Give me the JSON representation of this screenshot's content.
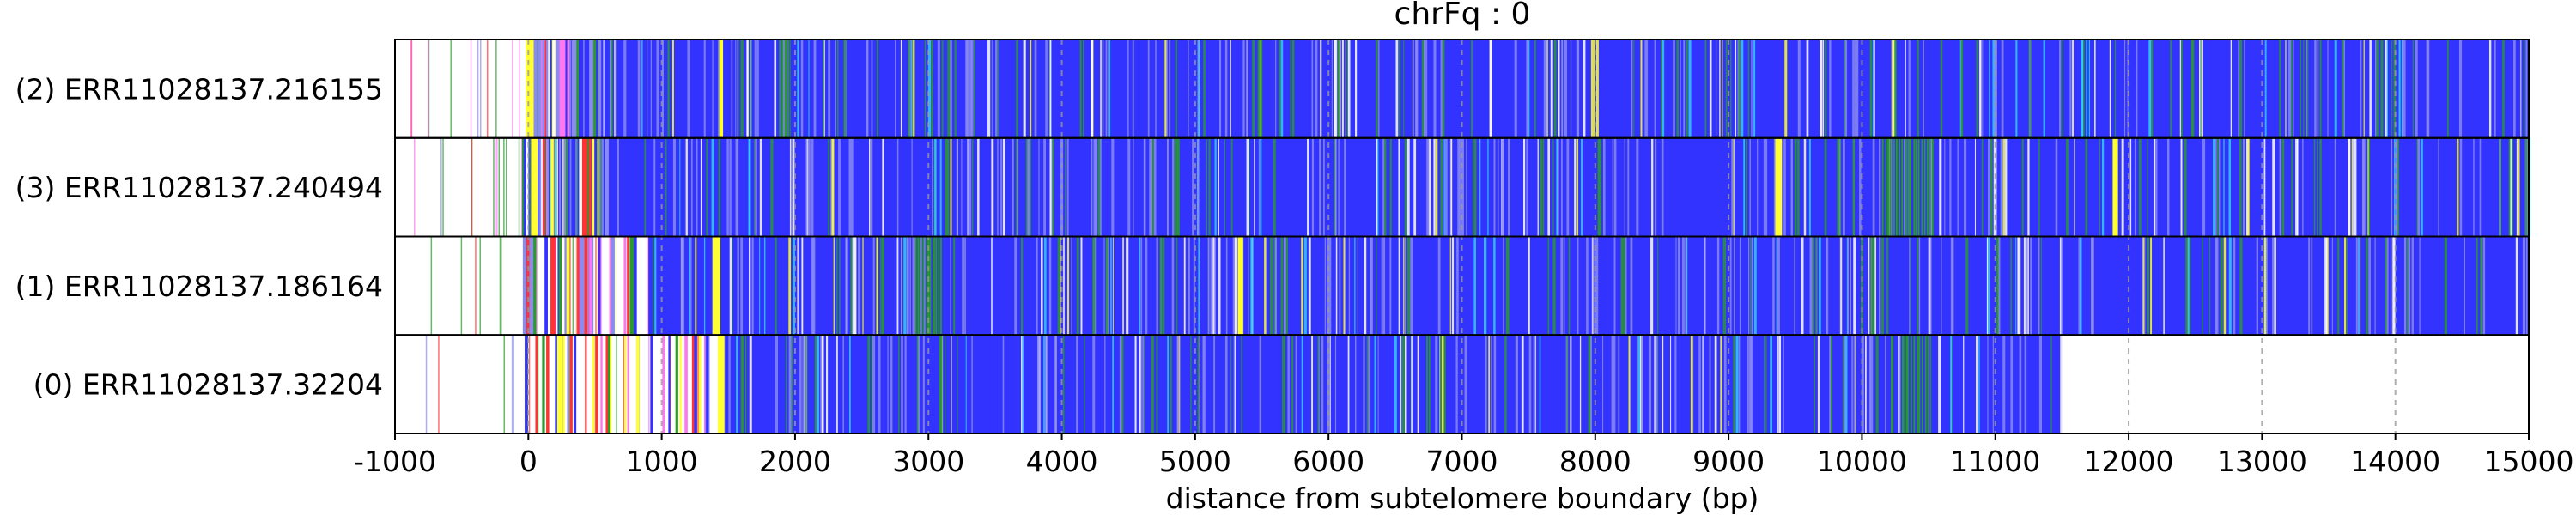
{
  "chart_data": {
    "type": "heatmap",
    "title": "chrFq : 0",
    "xlabel": "distance from subtelomere boundary (bp)",
    "ylabel": "",
    "xlim": [
      -1000,
      15000
    ],
    "xticks": [
      -1000,
      0,
      1000,
      2000,
      3000,
      4000,
      5000,
      6000,
      7000,
      8000,
      9000,
      10000,
      11000,
      12000,
      13000,
      14000,
      15000
    ],
    "grid": "vertical dashed",
    "colors": {
      "background": "#3333ff",
      "gap": "#ffffff",
      "mix": "#8a8af0",
      "green": "#2a9a2a",
      "yellow": "#ffff33",
      "red": "#ff3333",
      "pink": "#ff77ee",
      "cyan": "#33ccff",
      "grid": "#999999"
    },
    "reads": [
      {
        "label": "(2) ERR11028137.216155",
        "start": -1000,
        "end": 15000,
        "dense_start": 0,
        "yellow": [
          [
            -20,
            40
          ],
          [
            1430,
            1460
          ]
        ],
        "green": [
          [
            1880,
            1960
          ]
        ]
      },
      {
        "label": "(3) ERR11028137.240494",
        "start": -1000,
        "end": 15000,
        "dense_start": 0,
        "yellow": [
          [
            20,
            70
          ],
          [
            9350,
            9400
          ],
          [
            11880,
            11920
          ]
        ],
        "green": [
          [
            10150,
            10550
          ]
        ]
      },
      {
        "label": "(1) ERR11028137.186164",
        "start": -1000,
        "end": 15000,
        "dense_start": 900,
        "yellow": [
          [
            1380,
            1440
          ],
          [
            5320,
            5360
          ]
        ],
        "green": [
          [
            2900,
            3100
          ]
        ]
      },
      {
        "label": "(0) ERR11028137.32204",
        "start": -1000,
        "end": 11500,
        "dense_start": 1450,
        "yellow": [
          [
            1420,
            1470
          ]
        ],
        "green": [
          [
            10300,
            10500
          ]
        ]
      }
    ]
  }
}
